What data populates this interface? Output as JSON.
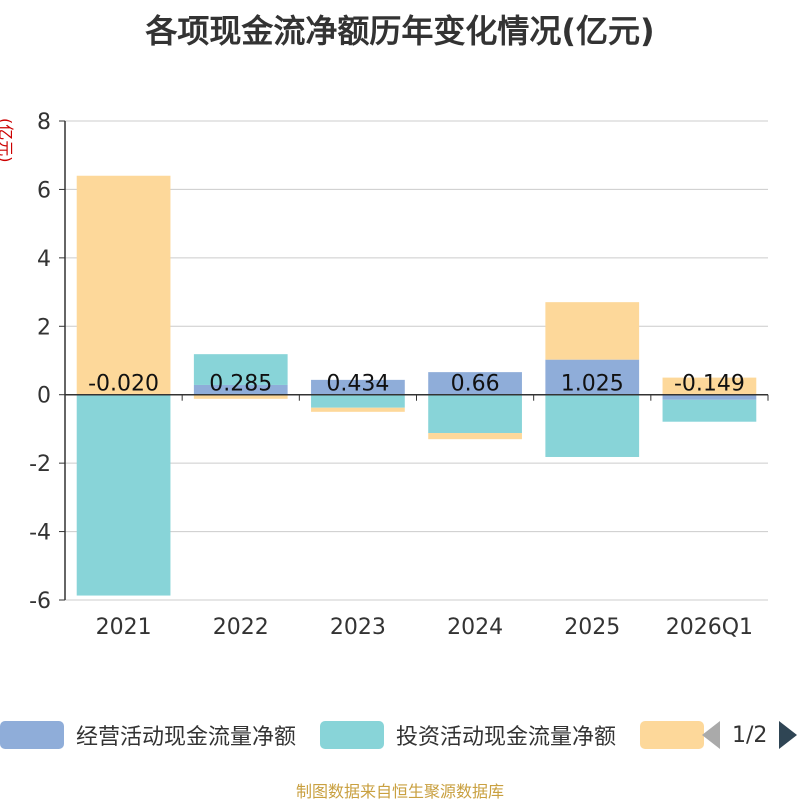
{
  "title": "各项现金流净额历年变化情况(亿元)",
  "source": "制图数据来自恒生聚源数据库",
  "legend_pager": "1/2",
  "chart_data": {
    "type": "bar",
    "stacked": true,
    "categories": [
      "2021",
      "2022",
      "2023",
      "2024",
      "2025",
      "2026Q1"
    ],
    "ylabel": "(亿元)",
    "ylim": [
      -6,
      8
    ],
    "yticks": [
      8,
      6,
      4,
      2,
      0,
      -2,
      -4,
      -6
    ],
    "grid": true,
    "legend_position": "bottom",
    "series": [
      {
        "name": "经营活动现金流量净额",
        "color": "#8fadd9",
        "values": [
          -0.02,
          0.285,
          0.434,
          0.66,
          1.025,
          -0.149
        ],
        "labels": [
          "-0.020",
          "0.285",
          "0.434",
          "0.66",
          "1.025",
          "-0.149"
        ]
      },
      {
        "name": "投资活动现金流量净额",
        "color": "#88d4d8",
        "values": [
          -5.85,
          0.9,
          -0.38,
          -1.12,
          -1.82,
          -0.64
        ]
      },
      {
        "name": "",
        "color": "#fdd89a",
        "values": [
          6.4,
          -0.12,
          -0.12,
          -0.18,
          1.68,
          0.5
        ]
      }
    ]
  }
}
